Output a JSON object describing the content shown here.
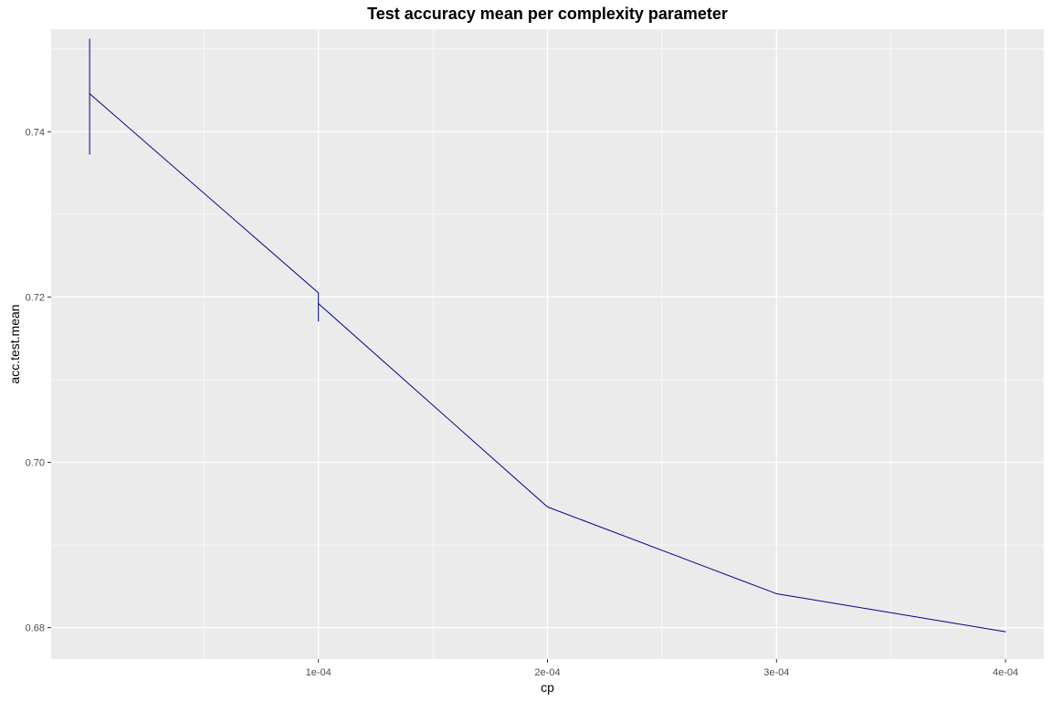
{
  "chart_data": {
    "type": "line",
    "title": "Test accuracy mean per complexity parameter",
    "xlabel": "cp",
    "ylabel": "acc.test.mean",
    "xlim": [
      -1.67e-05,
      0.0004167
    ],
    "ylim": [
      0.6762,
      0.7524
    ],
    "x_ticks": [
      0.0001,
      0.0002,
      0.0003,
      0.0004
    ],
    "x_tick_labels": [
      "1e-04",
      "2e-04",
      "3e-04",
      "4e-04"
    ],
    "x_minor_ticks": [
      5e-05,
      0.00015,
      0.00025,
      0.00035
    ],
    "y_ticks": [
      0.68,
      0.7,
      0.72,
      0.74
    ],
    "y_tick_labels": [
      "0.68",
      "0.70",
      "0.72",
      "0.74"
    ],
    "y_minor_ticks": [
      0.69,
      0.71,
      0.73,
      0.75
    ],
    "grid": true,
    "series": [
      {
        "color": "#00008B",
        "x": [
          1e-07,
          1e-07,
          1e-07,
          0.0001,
          0.0001,
          0.0001,
          0.0002,
          0.0003,
          0.0004
        ],
        "values": [
          0.7512,
          0.7373,
          0.7446,
          0.7205,
          0.7171,
          0.7192,
          0.6946,
          0.6841,
          0.6795
        ]
      }
    ]
  }
}
